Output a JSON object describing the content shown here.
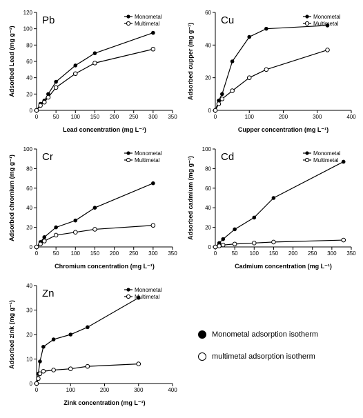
{
  "globalLegend": {
    "mono": "Monometal adsorption isotherm",
    "multi": "multimetal adsorption isotherm"
  },
  "miniLegend": {
    "mono": "Monometal",
    "multi": "Multimetal"
  },
  "colors": {
    "line": "#000000",
    "bg": "#ffffff",
    "marker_fill": "#000000",
    "marker_hollow_stroke": "#000000"
  },
  "charts": [
    {
      "id": "pb",
      "metal": "Pb",
      "xlabel": "Lead concentration (mg L⁻¹)",
      "ylabel": "Adsorbed Lead (mg g⁻¹)",
      "xlim": [
        0,
        350
      ],
      "xtick_step": 50,
      "ylim": [
        0,
        120
      ],
      "ytick_step": 20,
      "mono": {
        "x": [
          0,
          10,
          20,
          30,
          50,
          100,
          150,
          300
        ],
        "y": [
          0,
          8,
          12,
          20,
          35,
          55,
          70,
          95
        ]
      },
      "multi": {
        "x": [
          0,
          10,
          20,
          30,
          50,
          100,
          150,
          300
        ],
        "y": [
          0,
          6,
          10,
          16,
          28,
          45,
          58,
          75
        ]
      }
    },
    {
      "id": "cu",
      "metal": "Cu",
      "xlabel": "Cupper concentration (mg L⁻¹)",
      "ylabel": "Adsorbed cupper (mg g⁻¹)",
      "xlim": [
        0,
        400
      ],
      "xtick_step": 100,
      "ylim": [
        0,
        60
      ],
      "ytick_step": 20,
      "mono": {
        "x": [
          0,
          10,
          20,
          50,
          100,
          150,
          330
        ],
        "y": [
          0,
          6,
          10,
          30,
          45,
          50,
          52
        ]
      },
      "multi": {
        "x": [
          0,
          10,
          20,
          50,
          100,
          150,
          330
        ],
        "y": [
          0,
          4,
          7,
          12,
          20,
          25,
          37
        ]
      }
    },
    {
      "id": "cr",
      "metal": "Cr",
      "xlabel": "Chromium concentration (mg L⁻¹)",
      "ylabel": "Adsorbed chromium (mg g⁻¹)",
      "xlim": [
        0,
        350
      ],
      "xtick_step": 50,
      "ylim": [
        0,
        100
      ],
      "ytick_step": 20,
      "mono": {
        "x": [
          0,
          10,
          20,
          50,
          100,
          150,
          300
        ],
        "y": [
          0,
          5,
          10,
          20,
          27,
          40,
          65
        ]
      },
      "multi": {
        "x": [
          0,
          10,
          20,
          50,
          100,
          150,
          300
        ],
        "y": [
          0,
          3,
          6,
          12,
          15,
          18,
          22
        ]
      }
    },
    {
      "id": "cd",
      "metal": "Cd",
      "xlabel": "Cadmium concentration (mg L⁻¹)",
      "ylabel": "Adsorbed cadmium (mg g⁻¹)",
      "xlim": [
        0,
        350
      ],
      "xtick_step": 50,
      "ylim": [
        0,
        100
      ],
      "ytick_step": 20,
      "mono": {
        "x": [
          0,
          10,
          20,
          50,
          100,
          150,
          330
        ],
        "y": [
          0,
          4,
          8,
          18,
          30,
          50,
          87
        ]
      },
      "multi": {
        "x": [
          0,
          10,
          20,
          50,
          100,
          150,
          330
        ],
        "y": [
          0,
          1,
          2,
          3,
          4,
          5,
          7
        ]
      }
    },
    {
      "id": "zn",
      "metal": "Zn",
      "xlabel": "Zink concentration (mg L⁻¹)",
      "ylabel": "Adsorbed zink (mg g⁻¹)",
      "xlim": [
        0,
        400
      ],
      "xtick_step": 100,
      "ylim": [
        0,
        40
      ],
      "ytick_step": 10,
      "mono": {
        "x": [
          0,
          5,
          10,
          20,
          50,
          100,
          150,
          300
        ],
        "y": [
          0,
          4,
          9,
          15,
          18,
          20,
          23,
          35
        ]
      },
      "multi": {
        "x": [
          0,
          5,
          10,
          20,
          50,
          100,
          150,
          300
        ],
        "y": [
          0,
          2,
          4,
          5,
          5.5,
          6,
          7,
          8
        ]
      }
    }
  ]
}
